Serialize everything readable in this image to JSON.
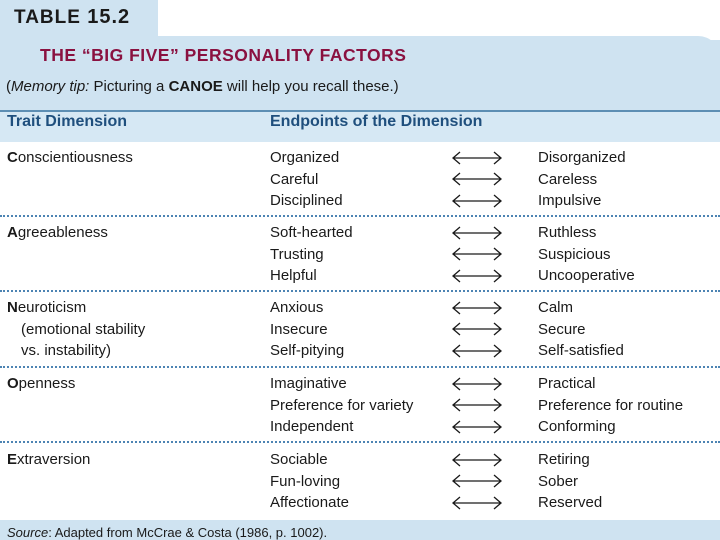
{
  "table_label": "TABLE",
  "table_number": "15.2",
  "title": "THE “BIG FIVE” PERSONALITY FACTORS",
  "memory_tip": {
    "open_paren": "(",
    "label": "Memory tip:",
    "text_before": " Picturing a ",
    "keyword": "CANOE",
    "text_after": " will help you recall these.)"
  },
  "columns": {
    "trait": "Trait Dimension",
    "endpoints": "Endpoints of the Dimension"
  },
  "rows": [
    {
      "initial": "C",
      "rest": "onscientiousness",
      "sub": [],
      "left": [
        "Organized",
        "Careful",
        "Disciplined"
      ],
      "right": [
        "Disorganized",
        "Careless",
        "Impulsive"
      ]
    },
    {
      "initial": "A",
      "rest": "greeableness",
      "sub": [],
      "left": [
        "Soft-hearted",
        "Trusting",
        "Helpful"
      ],
      "right": [
        "Ruthless",
        "Suspicious",
        "Uncooperative"
      ]
    },
    {
      "initial": "N",
      "rest": "euroticism",
      "sub": [
        "(emotional stability",
        "vs. instability)"
      ],
      "left": [
        "Anxious",
        "Insecure",
        "Self-pitying"
      ],
      "right": [
        "Calm",
        "Secure",
        "Self-satisfied"
      ]
    },
    {
      "initial": "O",
      "rest": "penness",
      "sub": [],
      "left": [
        "Imaginative",
        "Preference for variety",
        "Independent"
      ],
      "right": [
        "Practical",
        "Preference for routine",
        "Conforming"
      ]
    },
    {
      "initial": "E",
      "rest": "xtraversion",
      "sub": [],
      "left": [
        "Sociable",
        "Fun-loving",
        "Affectionate"
      ],
      "right": [
        "Retiring",
        "Sober",
        "Reserved"
      ]
    }
  ],
  "source": {
    "label": "Source",
    "text": ": Adapted from McCrae & Costa (1986, p. 1002)."
  },
  "colors": {
    "title": "#8a1140",
    "column_header": "#1f4f7d",
    "panel": "#cfe3f1",
    "divider": "#4d84b3"
  },
  "icons": {
    "arrow": "double-headed-arrow-icon"
  }
}
